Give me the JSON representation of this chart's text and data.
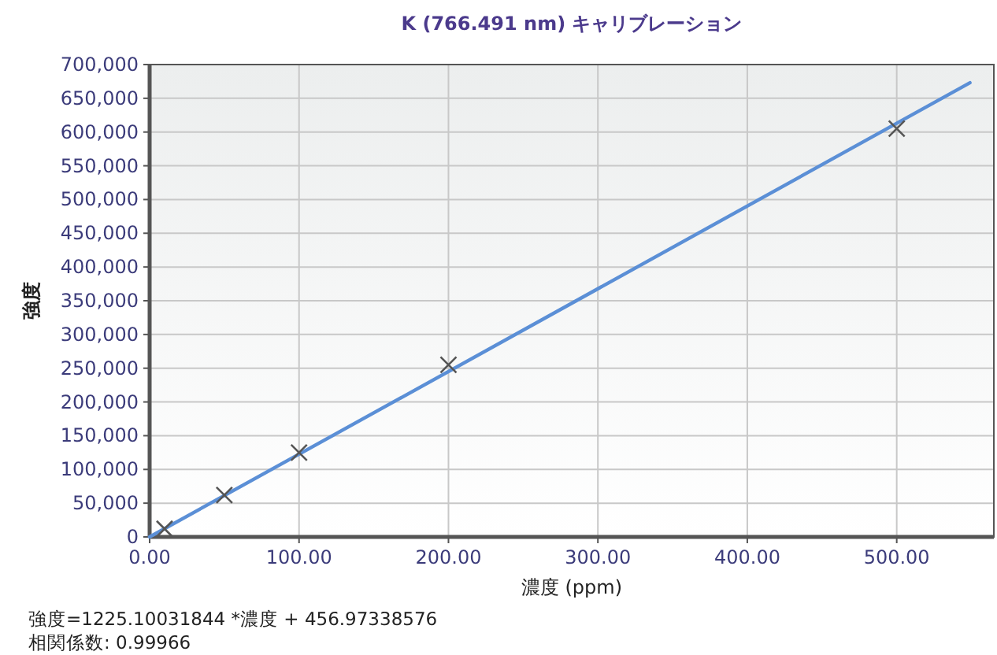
{
  "chart_data": {
    "type": "scatter",
    "title": "K (766.491 nm) キャリブレーション",
    "xlabel": "濃度 (ppm)",
    "ylabel": "強度",
    "annotations": [
      "強度=1225.10031844 *濃度 + 456.97338576",
      "相関係数: 0.99966"
    ],
    "series": [
      {
        "color": "#555555",
        "marker": "cross",
        "x": [
          10,
          50,
          100,
          200,
          500
        ],
        "values": [
          12000,
          62000,
          125000,
          255000,
          605000
        ]
      },
      {
        "type": "line",
        "color": "#5b8fd6",
        "marker": "none",
        "x": [
          0,
          549
        ],
        "values": [
          0,
          673000
        ]
      }
    ],
    "xlim": [
      0,
      565
    ],
    "ylim": [
      0,
      700000
    ],
    "xticks": [
      {
        "value": 0,
        "label": "0.00"
      },
      {
        "value": 100,
        "label": "100.00"
      },
      {
        "value": 200,
        "label": "200.00"
      },
      {
        "value": 300,
        "label": "300.00"
      },
      {
        "value": 400,
        "label": "400.00"
      },
      {
        "value": 500,
        "label": "500.00"
      }
    ],
    "yticks": [
      {
        "value": 0,
        "label": "0"
      },
      {
        "value": 50000,
        "label": "50,000"
      },
      {
        "value": 100000,
        "label": "100,000"
      },
      {
        "value": 150000,
        "label": "150,000"
      },
      {
        "value": 200000,
        "label": "200,000"
      },
      {
        "value": 250000,
        "label": "250,000"
      },
      {
        "value": 300000,
        "label": "300,000"
      },
      {
        "value": 350000,
        "label": "350,000"
      },
      {
        "value": 400000,
        "label": "400,000"
      },
      {
        "value": 450000,
        "label": "450,000"
      },
      {
        "value": 500000,
        "label": "500,000"
      },
      {
        "value": 550000,
        "label": "550,000"
      },
      {
        "value": 600000,
        "label": "600,000"
      },
      {
        "value": 650000,
        "label": "650,000"
      },
      {
        "value": 700000,
        "label": "700,000"
      }
    ],
    "grid": true
  }
}
